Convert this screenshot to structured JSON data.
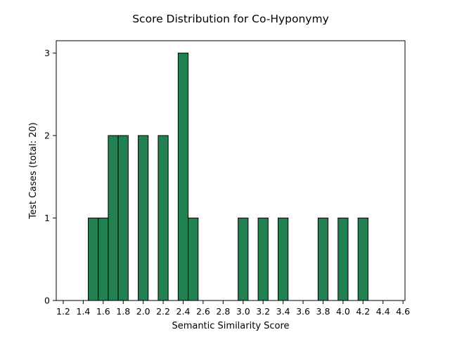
{
  "chart_data": {
    "type": "bar",
    "title": "Score Distribution for Co-Hyponymy",
    "xlabel": "Semantic Similarity Score",
    "ylabel": "Test Cases (total: 20)",
    "xlim": [
      1.13,
      4.62
    ],
    "ylim": [
      0,
      3.15
    ],
    "xticks": [
      1.2,
      1.4,
      1.6,
      1.8,
      2.0,
      2.2,
      2.4,
      2.6,
      2.8,
      3.0,
      3.2,
      3.4,
      3.6,
      3.8,
      4.0,
      4.2,
      4.4,
      4.6
    ],
    "xtick_labels": [
      "1.2",
      "1.4",
      "1.6",
      "1.8",
      "2.0",
      "2.2",
      "2.4",
      "2.6",
      "2.8",
      "3.0",
      "3.2",
      "3.4",
      "3.6",
      "3.8",
      "4.0",
      "4.2",
      "4.4",
      "4.6"
    ],
    "yticks": [
      0,
      1,
      2,
      3
    ],
    "ytick_labels": [
      "0",
      "1",
      "2",
      "3"
    ],
    "bin_width": 0.1,
    "bins": [
      {
        "x": 1.5,
        "count": 1
      },
      {
        "x": 1.6,
        "count": 1
      },
      {
        "x": 1.7,
        "count": 2
      },
      {
        "x": 1.8,
        "count": 2
      },
      {
        "x": 2.0,
        "count": 2
      },
      {
        "x": 2.2,
        "count": 2
      },
      {
        "x": 2.4,
        "count": 3
      },
      {
        "x": 2.5,
        "count": 1
      },
      {
        "x": 3.0,
        "count": 1
      },
      {
        "x": 3.2,
        "count": 1
      },
      {
        "x": 3.4,
        "count": 1
      },
      {
        "x": 3.8,
        "count": 1
      },
      {
        "x": 4.0,
        "count": 1
      },
      {
        "x": 4.2,
        "count": 1
      }
    ],
    "bar_color": "#228150",
    "edge_color": "#000000",
    "grid": false
  }
}
